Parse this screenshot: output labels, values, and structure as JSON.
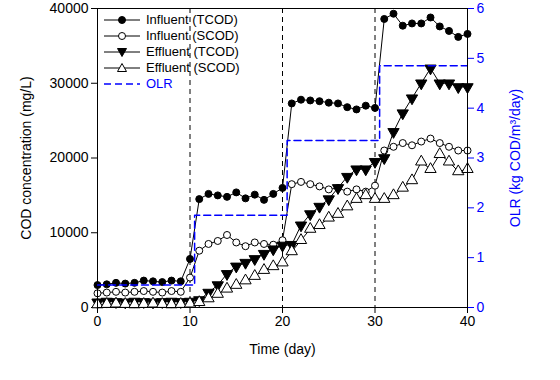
{
  "chart_data": {
    "type": "line",
    "x_label": "Time (day)",
    "y_label": "COD concentration (mg/L)",
    "y2_label": "OLR (kg COD/m³/day)",
    "xlim": [
      0,
      40
    ],
    "xticks": [
      0,
      10,
      20,
      30,
      40
    ],
    "ylim": [
      0,
      40000
    ],
    "yticks": [
      0,
      10000,
      20000,
      30000,
      40000
    ],
    "y2lim": [
      0,
      6
    ],
    "y2ticks": [
      0,
      1,
      2,
      3,
      4,
      5,
      6
    ],
    "legend": "upper left",
    "vlines": [
      10,
      20,
      30
    ],
    "x": [
      0,
      1,
      2,
      3,
      4,
      5,
      6,
      7,
      8,
      9,
      10,
      11,
      12,
      13,
      14,
      15,
      16,
      17,
      18,
      19,
      20,
      21,
      22,
      23,
      24,
      25,
      26,
      27,
      28,
      29,
      30,
      31,
      32,
      33,
      34,
      35,
      36,
      37,
      38,
      39,
      40
    ],
    "series": [
      {
        "name": "Influent (TCOD)",
        "color": "#000000",
        "marker": "filled-circle",
        "line_style": "solid",
        "type": "line",
        "values": [
          3000,
          3100,
          3300,
          3200,
          3300,
          3600,
          3500,
          3400,
          3600,
          3500,
          6500,
          14500,
          15200,
          15000,
          14800,
          15400,
          14600,
          15100,
          14400,
          15200,
          16000,
          27300,
          27800,
          27700,
          27600,
          27400,
          27300,
          26800,
          26500,
          27000,
          26700,
          38600,
          39300,
          37700,
          38000,
          38000,
          38800,
          37600,
          37000,
          36200,
          36600
        ]
      },
      {
        "name": "Influent (SCOD)",
        "color": "#000000",
        "marker": "open-circle",
        "line_style": "solid",
        "type": "line",
        "values": [
          1900,
          2000,
          2100,
          2000,
          2100,
          2200,
          2100,
          2000,
          2200,
          2100,
          4000,
          7600,
          8500,
          8900,
          9700,
          8700,
          8200,
          8700,
          8500,
          8400,
          9000,
          16500,
          16800,
          16500,
          16200,
          15800,
          16000,
          15500,
          15800,
          15500,
          16300,
          21000,
          21500,
          22000,
          21700,
          22200,
          22600,
          22000,
          21500,
          21000,
          21000
        ]
      },
      {
        "name": "Effluent (TCOD)",
        "color": "#000000",
        "marker": "filled-triangle-down",
        "line_style": "solid",
        "type": "line",
        "values": [
          700,
          800,
          750,
          700,
          800,
          750,
          700,
          750,
          800,
          750,
          800,
          1000,
          2000,
          3000,
          4500,
          5500,
          6000,
          6500,
          7200,
          7800,
          8300,
          8400,
          11000,
          12500,
          13500,
          14500,
          16000,
          17500,
          18500,
          18500,
          19500,
          20000,
          23500,
          26000,
          28000,
          30000,
          32000,
          30000,
          30000,
          29500,
          29500
        ]
      },
      {
        "name": "Effluent (SCOD)",
        "color": "#000000",
        "marker": "open-triangle-up",
        "line_style": "solid",
        "type": "line",
        "values": [
          400,
          450,
          500,
          450,
          400,
          450,
          500,
          450,
          400,
          450,
          500,
          700,
          1200,
          1800,
          2500,
          3000,
          3600,
          4200,
          5000,
          5500,
          6000,
          7500,
          9000,
          10500,
          11000,
          12000,
          12500,
          13500,
          14500,
          15000,
          14500,
          14500,
          15000,
          16000,
          17000,
          19500,
          18500,
          20500,
          19500,
          18200,
          18500
        ]
      },
      {
        "name": "OLR",
        "color": "#0000ff",
        "marker": "none",
        "line_style": "dashed",
        "type": "step",
        "axis": "y2",
        "x": [
          0,
          10.5,
          20.5,
          30.5,
          40
        ],
        "values": [
          0.45,
          1.85,
          3.35,
          4.85,
          4.85
        ]
      }
    ]
  }
}
